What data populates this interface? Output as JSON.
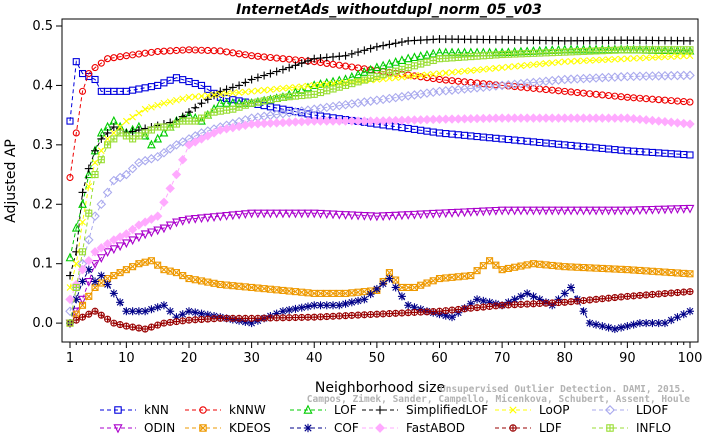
{
  "chart_data": {
    "type": "line",
    "title": "InternetAds_withoutdupl_norm_05_v03",
    "xlabel": "Neighborhood size",
    "ylabel": "Adjusted AP",
    "xlim": [
      1,
      100
    ],
    "ylim": [
      -0.02,
      0.5
    ],
    "xticks": [
      1,
      10,
      20,
      30,
      40,
      50,
      60,
      70,
      80,
      90,
      100
    ],
    "yticks": [
      0.0,
      0.1,
      0.2,
      0.3,
      0.4,
      0.5
    ],
    "xtick_labels": [
      "1",
      "10",
      "20",
      "30",
      "40",
      "50",
      "60",
      "70",
      "80",
      "90",
      "100"
    ],
    "ytick_labels": [
      "0.0",
      "0.1",
      "0.2",
      "0.3",
      "0.4",
      "0.5"
    ],
    "grid": false,
    "legend_position": "bottom",
    "series": [
      {
        "name": "kNN",
        "color": "#0000dd",
        "marker": "square",
        "dash": "4,3",
        "points": [
          [
            1,
            0.34
          ],
          [
            2,
            0.44
          ],
          [
            3,
            0.42
          ],
          [
            4,
            0.415
          ],
          [
            5,
            0.41
          ],
          [
            6,
            0.39
          ],
          [
            10,
            0.39
          ],
          [
            15,
            0.4
          ],
          [
            18,
            0.413
          ],
          [
            22,
            0.4
          ],
          [
            25,
            0.38
          ],
          [
            30,
            0.37
          ],
          [
            40,
            0.35
          ],
          [
            50,
            0.335
          ],
          [
            60,
            0.32
          ],
          [
            70,
            0.31
          ],
          [
            80,
            0.3
          ],
          [
            90,
            0.29
          ],
          [
            100,
            0.283
          ]
        ]
      },
      {
        "name": "kNNW",
        "color": "#ee0000",
        "marker": "circle",
        "dash": "4,3",
        "points": [
          [
            1,
            0.245
          ],
          [
            2,
            0.32
          ],
          [
            3,
            0.39
          ],
          [
            4,
            0.42
          ],
          [
            5,
            0.43
          ],
          [
            7,
            0.445
          ],
          [
            10,
            0.45
          ],
          [
            15,
            0.457
          ],
          [
            20,
            0.46
          ],
          [
            25,
            0.458
          ],
          [
            30,
            0.45
          ],
          [
            40,
            0.44
          ],
          [
            50,
            0.425
          ],
          [
            60,
            0.41
          ],
          [
            70,
            0.4
          ],
          [
            80,
            0.39
          ],
          [
            90,
            0.38
          ],
          [
            100,
            0.372
          ]
        ]
      },
      {
        "name": "LOF",
        "color": "#00cc00",
        "marker": "triangle-up",
        "dash": "4,3",
        "points": [
          [
            1,
            0.11
          ],
          [
            2,
            0.16
          ],
          [
            3,
            0.2
          ],
          [
            4,
            0.25
          ],
          [
            5,
            0.29
          ],
          [
            6,
            0.32
          ],
          [
            7,
            0.33
          ],
          [
            8,
            0.34
          ],
          [
            10,
            0.32
          ],
          [
            12,
            0.33
          ],
          [
            14,
            0.3
          ],
          [
            16,
            0.32
          ],
          [
            18,
            0.34
          ],
          [
            20,
            0.35
          ],
          [
            22,
            0.34
          ],
          [
            25,
            0.37
          ],
          [
            30,
            0.37
          ],
          [
            35,
            0.38
          ],
          [
            40,
            0.4
          ],
          [
            45,
            0.41
          ],
          [
            50,
            0.43
          ],
          [
            55,
            0.445
          ],
          [
            60,
            0.455
          ],
          [
            70,
            0.455
          ],
          [
            80,
            0.46
          ],
          [
            90,
            0.46
          ],
          [
            100,
            0.458
          ]
        ]
      },
      {
        "name": "SimplifiedLOF",
        "color": "#000000",
        "marker": "plus",
        "dash": "4,3",
        "points": [
          [
            1,
            0.08
          ],
          [
            2,
            0.12
          ],
          [
            3,
            0.22
          ],
          [
            4,
            0.26
          ],
          [
            5,
            0.29
          ],
          [
            6,
            0.31
          ],
          [
            8,
            0.33
          ],
          [
            10,
            0.32
          ],
          [
            14,
            0.33
          ],
          [
            18,
            0.34
          ],
          [
            22,
            0.37
          ],
          [
            25,
            0.39
          ],
          [
            28,
            0.4
          ],
          [
            30,
            0.41
          ],
          [
            33,
            0.42
          ],
          [
            36,
            0.43
          ],
          [
            40,
            0.445
          ],
          [
            45,
            0.45
          ],
          [
            50,
            0.465
          ],
          [
            55,
            0.475
          ],
          [
            60,
            0.478
          ],
          [
            70,
            0.477
          ],
          [
            80,
            0.475
          ],
          [
            90,
            0.476
          ],
          [
            100,
            0.475
          ]
        ]
      },
      {
        "name": "LoOP",
        "color": "#ffff00",
        "marker": "x",
        "dash": "4,3",
        "points": [
          [
            1,
            0.06
          ],
          [
            2,
            0.1
          ],
          [
            3,
            0.17
          ],
          [
            4,
            0.23
          ],
          [
            5,
            0.27
          ],
          [
            7,
            0.31
          ],
          [
            10,
            0.34
          ],
          [
            13,
            0.36
          ],
          [
            16,
            0.37
          ],
          [
            20,
            0.38
          ],
          [
            25,
            0.385
          ],
          [
            30,
            0.39
          ],
          [
            40,
            0.4
          ],
          [
            50,
            0.41
          ],
          [
            60,
            0.42
          ],
          [
            70,
            0.43
          ],
          [
            80,
            0.44
          ],
          [
            90,
            0.445
          ],
          [
            100,
            0.45
          ]
        ]
      },
      {
        "name": "LDOF",
        "color": "#aaaaee",
        "marker": "diamond",
        "dash": "4,3",
        "points": [
          [
            1,
            0.02
          ],
          [
            3,
            0.1
          ],
          [
            5,
            0.18
          ],
          [
            8,
            0.24
          ],
          [
            10,
            0.25
          ],
          [
            12,
            0.27
          ],
          [
            15,
            0.28
          ],
          [
            18,
            0.3
          ],
          [
            20,
            0.31
          ],
          [
            22,
            0.32
          ],
          [
            25,
            0.33
          ],
          [
            30,
            0.345
          ],
          [
            40,
            0.36
          ],
          [
            50,
            0.375
          ],
          [
            60,
            0.39
          ],
          [
            70,
            0.4
          ],
          [
            80,
            0.41
          ],
          [
            90,
            0.415
          ],
          [
            100,
            0.417
          ]
        ]
      },
      {
        "name": "ODIN",
        "color": "#aa00cc",
        "marker": "triangle-down",
        "dash": "4,3",
        "points": [
          [
            1,
            0.0
          ],
          [
            2,
            0.02
          ],
          [
            3,
            0.04
          ],
          [
            4,
            0.07
          ],
          [
            5,
            0.1
          ],
          [
            7,
            0.12
          ],
          [
            10,
            0.135
          ],
          [
            13,
            0.15
          ],
          [
            16,
            0.16
          ],
          [
            18,
            0.17
          ],
          [
            20,
            0.175
          ],
          [
            25,
            0.18
          ],
          [
            30,
            0.185
          ],
          [
            40,
            0.185
          ],
          [
            50,
            0.18
          ],
          [
            60,
            0.185
          ],
          [
            70,
            0.19
          ],
          [
            80,
            0.19
          ],
          [
            90,
            0.19
          ],
          [
            100,
            0.193
          ]
        ]
      },
      {
        "name": "KDEOS",
        "color": "#ee9900",
        "marker": "square-x",
        "dash": "4,3",
        "points": [
          [
            1,
            0.0
          ],
          [
            3,
            0.03
          ],
          [
            5,
            0.06
          ],
          [
            7,
            0.075
          ],
          [
            10,
            0.09
          ],
          [
            12,
            0.1
          ],
          [
            14,
            0.105
          ],
          [
            16,
            0.09
          ],
          [
            18,
            0.085
          ],
          [
            20,
            0.075
          ],
          [
            25,
            0.065
          ],
          [
            30,
            0.06
          ],
          [
            35,
            0.055
          ],
          [
            40,
            0.05
          ],
          [
            45,
            0.05
          ],
          [
            50,
            0.055
          ],
          [
            52,
            0.085
          ],
          [
            54,
            0.06
          ],
          [
            56,
            0.06
          ],
          [
            60,
            0.075
          ],
          [
            65,
            0.08
          ],
          [
            68,
            0.105
          ],
          [
            70,
            0.09
          ],
          [
            75,
            0.1
          ],
          [
            80,
            0.095
          ],
          [
            90,
            0.09
          ],
          [
            100,
            0.083
          ]
        ]
      },
      {
        "name": "COF",
        "color": "#000088",
        "marker": "star",
        "dash": "4,3",
        "points": [
          [
            1,
            0.0
          ],
          [
            2,
            0.04
          ],
          [
            3,
            0.07
          ],
          [
            4,
            0.09
          ],
          [
            5,
            0.07
          ],
          [
            6,
            0.08
          ],
          [
            8,
            0.05
          ],
          [
            10,
            0.02
          ],
          [
            13,
            0.02
          ],
          [
            16,
            0.03
          ],
          [
            18,
            0.01
          ],
          [
            20,
            0.02
          ],
          [
            25,
            0.01
          ],
          [
            30,
            0.0
          ],
          [
            35,
            0.02
          ],
          [
            40,
            0.03
          ],
          [
            44,
            0.03
          ],
          [
            48,
            0.04
          ],
          [
            52,
            0.075
          ],
          [
            55,
            0.03
          ],
          [
            58,
            0.02
          ],
          [
            62,
            0.01
          ],
          [
            66,
            0.04
          ],
          [
            70,
            0.03
          ],
          [
            74,
            0.05
          ],
          [
            78,
            0.03
          ],
          [
            81,
            0.06
          ],
          [
            84,
            0.0
          ],
          [
            88,
            -0.01
          ],
          [
            92,
            0.0
          ],
          [
            96,
            0.0
          ],
          [
            100,
            0.02
          ]
        ]
      },
      {
        "name": "FastABOD",
        "color": "#ffaaff",
        "marker": "diamond-filled",
        "dash": "4,3",
        "points": [
          [
            1,
            0.04
          ],
          [
            3,
            0.09
          ],
          [
            5,
            0.12
          ],
          [
            8,
            0.14
          ],
          [
            10,
            0.15
          ],
          [
            12,
            0.165
          ],
          [
            15,
            0.18
          ],
          [
            18,
            0.25
          ],
          [
            20,
            0.3
          ],
          [
            22,
            0.31
          ],
          [
            25,
            0.325
          ],
          [
            30,
            0.335
          ],
          [
            40,
            0.34
          ],
          [
            50,
            0.34
          ],
          [
            60,
            0.343
          ],
          [
            70,
            0.345
          ],
          [
            80,
            0.345
          ],
          [
            90,
            0.345
          ],
          [
            100,
            0.335
          ]
        ]
      },
      {
        "name": "LDF",
        "color": "#990000",
        "marker": "circle-plus",
        "dash": "4,3",
        "points": [
          [
            1,
            0.0
          ],
          [
            3,
            0.01
          ],
          [
            5,
            0.02
          ],
          [
            8,
            0.0
          ],
          [
            10,
            -0.005
          ],
          [
            13,
            -0.01
          ],
          [
            16,
            0.0
          ],
          [
            20,
            0.005
          ],
          [
            25,
            0.008
          ],
          [
            30,
            0.008
          ],
          [
            40,
            0.01
          ],
          [
            50,
            0.015
          ],
          [
            60,
            0.02
          ],
          [
            70,
            0.03
          ],
          [
            80,
            0.035
          ],
          [
            90,
            0.045
          ],
          [
            100,
            0.053
          ]
        ]
      },
      {
        "name": "INFLO",
        "color": "#99dd33",
        "marker": "square-cross",
        "dash": "4,3",
        "points": [
          [
            1,
            0.0
          ],
          [
            3,
            0.12
          ],
          [
            5,
            0.25
          ],
          [
            7,
            0.3
          ],
          [
            9,
            0.32
          ],
          [
            11,
            0.31
          ],
          [
            13,
            0.32
          ],
          [
            15,
            0.33
          ],
          [
            17,
            0.33
          ],
          [
            19,
            0.34
          ],
          [
            21,
            0.34
          ],
          [
            24,
            0.355
          ],
          [
            27,
            0.36
          ],
          [
            30,
            0.37
          ],
          [
            35,
            0.38
          ],
          [
            40,
            0.385
          ],
          [
            45,
            0.4
          ],
          [
            50,
            0.415
          ],
          [
            55,
            0.43
          ],
          [
            60,
            0.445
          ],
          [
            70,
            0.452
          ],
          [
            80,
            0.456
          ],
          [
            90,
            0.46
          ],
          [
            100,
            0.46
          ]
        ]
      }
    ]
  },
  "watermark": [
    "Unsupervised Outlier Detection. DAMI, 2015.",
    "Campos, Zimek, Sander, Campello, Micenkova, Schubert, Assent, Houle"
  ]
}
